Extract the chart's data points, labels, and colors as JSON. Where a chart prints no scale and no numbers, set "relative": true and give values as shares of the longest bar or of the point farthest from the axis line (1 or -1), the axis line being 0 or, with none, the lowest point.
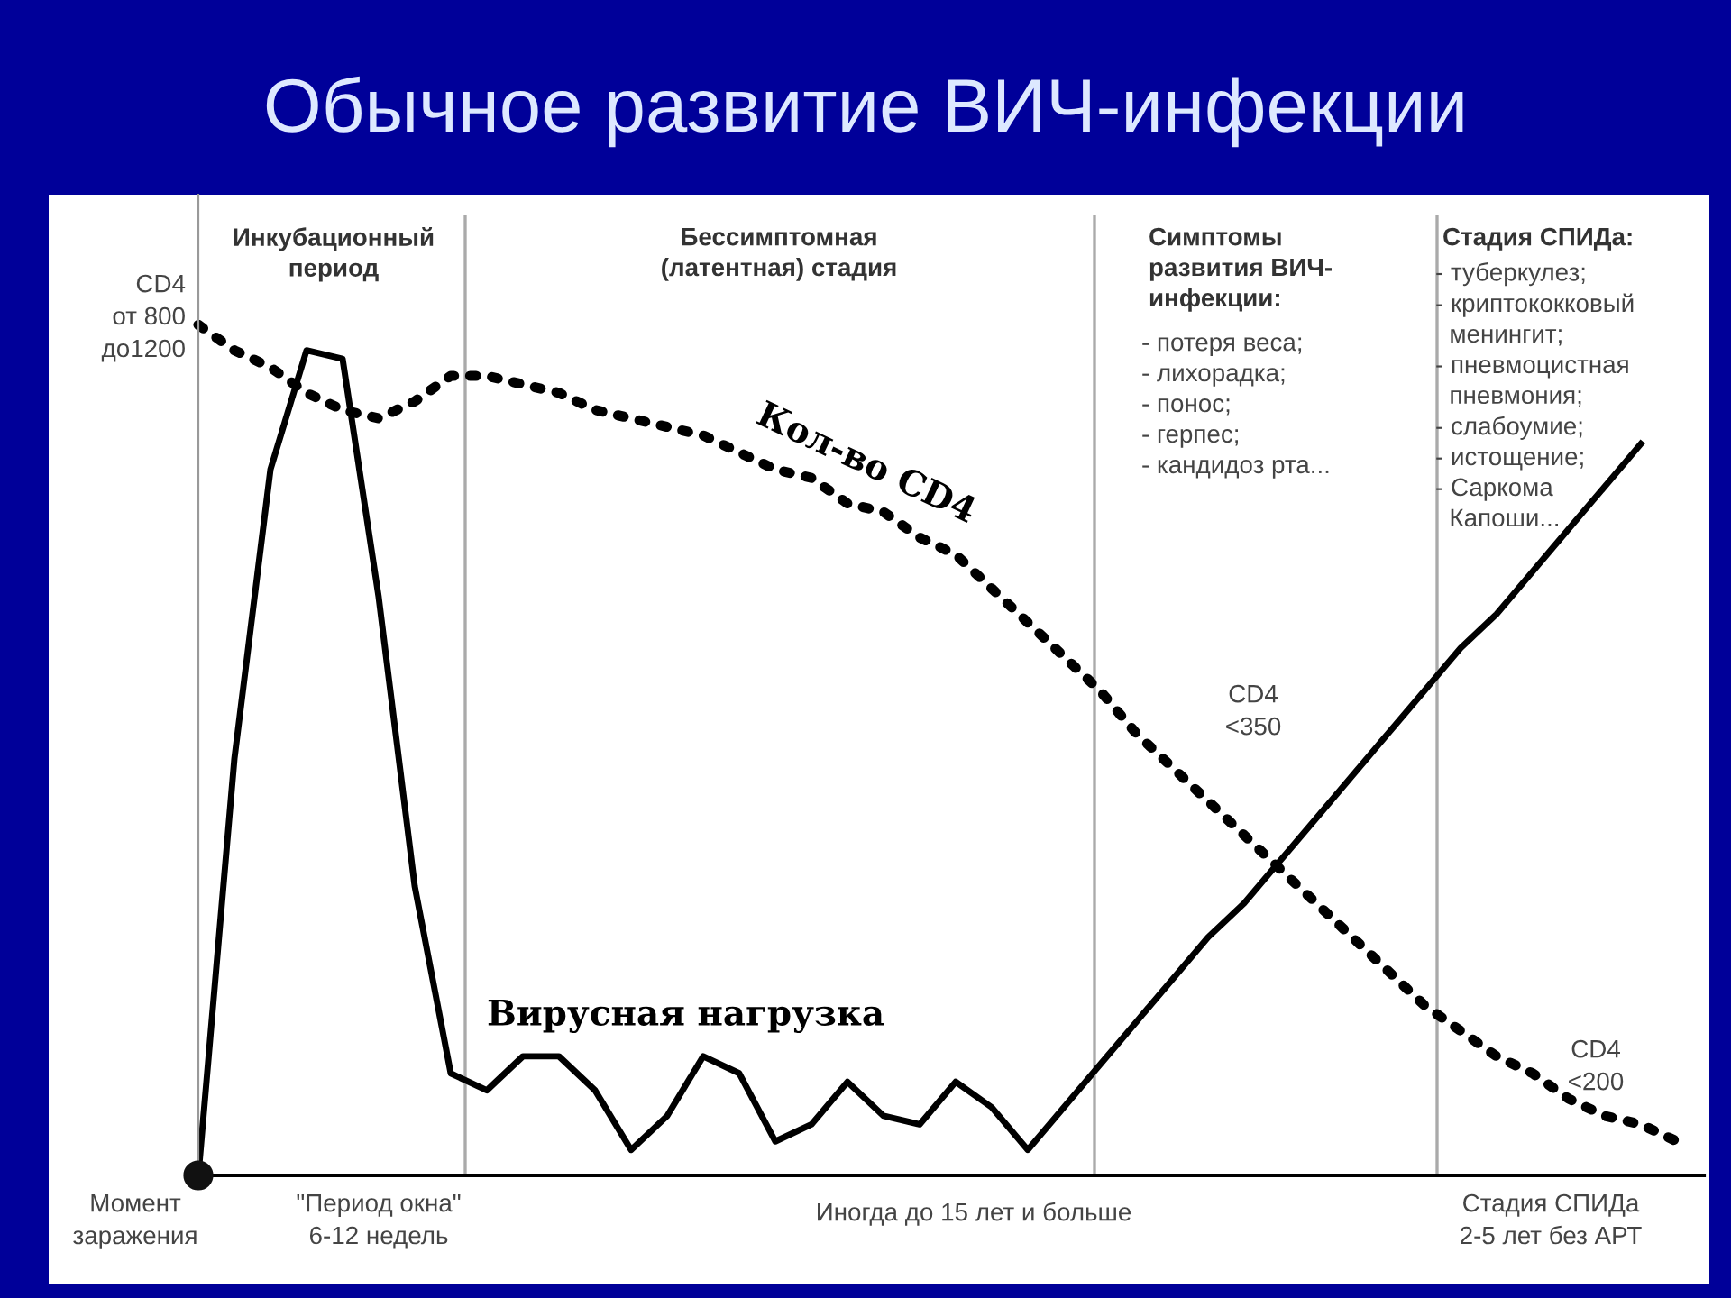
{
  "chart_data": {
    "type": "line",
    "title": "Обычное развитие ВИЧ-инфекции",
    "relative": true,
    "categories": [
      null,
      null,
      null,
      null,
      null,
      null,
      null,
      null,
      null,
      null,
      null,
      null,
      null,
      null,
      null,
      null,
      null,
      null,
      null,
      null,
      null,
      null,
      null,
      null,
      null,
      null,
      null,
      null,
      null,
      null,
      null,
      null,
      null,
      null,
      null,
      null,
      null,
      null,
      null,
      null,
      null,
      null
    ],
    "series": [
      {
        "name": "Кол-во CD4",
        "color": "#000000",
        "line_style": "dotted",
        "values": [
          1.0,
          0.97,
          0.95,
          0.92,
          0.9,
          0.89,
          0.91,
          0.94,
          0.94,
          0.93,
          0.92,
          0.9,
          0.89,
          0.88,
          0.87,
          0.85,
          0.83,
          0.82,
          0.79,
          0.78,
          0.75,
          0.73,
          0.69,
          0.65,
          0.61,
          0.57,
          0.52,
          0.48,
          0.44,
          0.4,
          0.36,
          0.32,
          0.28,
          0.24,
          0.2,
          0.17,
          0.14,
          0.12,
          0.09,
          0.07,
          0.06,
          0.04
        ]
      },
      {
        "name": "Вирусная нагрузка",
        "color": "#000000",
        "line_style": "solid",
        "values": [
          0,
          0.49,
          0.83,
          0.97,
          0.96,
          0.68,
          0.34,
          0.12,
          0.1,
          0.14,
          0.14,
          0.1,
          0.03,
          0.07,
          0.14,
          0.12,
          0.04,
          0.06,
          0.11,
          0.07,
          0.06,
          0.11,
          0.08,
          0.03,
          0.08,
          0.13,
          0.18,
          0.23,
          0.28,
          0.32,
          0.37,
          0.42,
          0.47,
          0.52,
          0.57,
          0.62,
          0.66,
          0.71,
          0.76,
          0.81,
          0.86,
          null
        ]
      }
    ],
    "annotations": [
      "Инкубационный\nпериод",
      "Бессимптомная\n(латентная) стадия",
      "Симптомы\nразвития ВИЧ-\nинфекции:\n- потеря веса;\n- лихорадка;\n- понос;\n- герпес;\n- кандидоз рта...",
      "Стадия СПИДа:\n- туберкулез;\n- криптококковый\n  менингит;\n- пневмоцистная\n  пневмония;\n- слабоумие;\n- истощение;\n- Саркома\n  Капоши...",
      "CD4\nот 800\nдо1200",
      "CD4\n<350",
      "CD4\n<200",
      "Момент\nзаражения",
      "\"Период окна\"\n6-12 недель",
      "Иногда до 15 лет и больше",
      "Стадия СПИДа\n2-5 лет без АРТ"
    ]
  }
}
